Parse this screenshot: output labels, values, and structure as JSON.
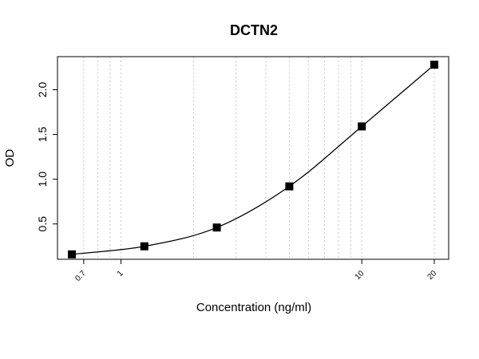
{
  "chart_data": {
    "type": "scatter",
    "title": "DCTN2",
    "xlabel": "Concentration (ng/ml)",
    "ylabel": "OD",
    "x_scale": "log",
    "xlim": [
      0.625,
      20
    ],
    "ylim": [
      0.105,
      2.37
    ],
    "grid": "vertical dotted lines at x ticks",
    "x_ticks": [
      0.7,
      1,
      10,
      20
    ],
    "x_tick_labels": [
      "0.7",
      "1",
      "10",
      "20"
    ],
    "x_minor_gridlines": [
      0.7,
      0.8,
      0.9,
      1,
      2,
      3,
      4,
      5,
      6,
      7,
      8,
      9,
      10,
      20
    ],
    "y_ticks": [
      0.5,
      1.0,
      1.5,
      2.0
    ],
    "y_tick_labels": [
      "0.5",
      "1.0",
      "1.5",
      "2.0"
    ],
    "series": [
      {
        "x": [
          0.625,
          1.25,
          2.5,
          5,
          10,
          20
        ],
        "y": [
          0.16,
          0.25,
          0.46,
          0.92,
          1.59,
          2.28
        ],
        "marker": "square",
        "fitted_curve": true
      }
    ]
  }
}
